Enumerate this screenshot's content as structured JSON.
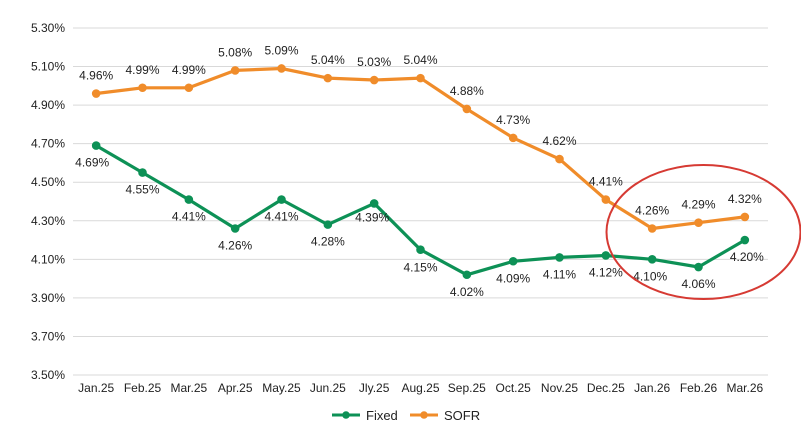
{
  "chart_data": {
    "type": "line",
    "title": "",
    "xlabel": "",
    "ylabel": "",
    "categories": [
      "Jan.25",
      "Feb.25",
      "Mar.25",
      "Apr.25",
      "May.25",
      "Jun.25",
      "Jly.25",
      "Aug.25",
      "Sep.25",
      "Oct.25",
      "Nov.25",
      "Dec.25",
      "Jan.26",
      "Feb.26",
      "Mar.26"
    ],
    "ylim": [
      3.5,
      5.3
    ],
    "yticks": [
      3.5,
      3.7,
      3.9,
      4.1,
      4.3,
      4.5,
      4.7,
      4.9,
      5.1,
      5.3
    ],
    "ytick_labels": [
      "3.50%",
      "3.70%",
      "3.90%",
      "4.10%",
      "4.30%",
      "4.50%",
      "4.70%",
      "4.90%",
      "5.10%",
      "5.30%"
    ],
    "grid": true,
    "legend_position": "bottom-center",
    "series": [
      {
        "name": "Fixed",
        "color": "#0d9156",
        "values": [
          4.69,
          4.55,
          4.41,
          4.26,
          4.41,
          4.28,
          4.39,
          4.15,
          4.02,
          4.09,
          4.11,
          4.12,
          4.1,
          4.06,
          4.2
        ],
        "labels": [
          "4.69%",
          "4.55%",
          "4.41%",
          "4.26%",
          "4.41%",
          "4.28%",
          "4.39%",
          "4.15%",
          "4.02%",
          "4.09%",
          "4.11%",
          "4.12%",
          "4.10%",
          "4.06%",
          "4.20%"
        ]
      },
      {
        "name": "SOFR",
        "color": "#f08c2a",
        "values": [
          4.96,
          4.99,
          4.99,
          5.08,
          5.09,
          5.04,
          5.03,
          5.04,
          4.88,
          4.73,
          4.62,
          4.41,
          4.26,
          4.29,
          4.32
        ],
        "labels": [
          "4.96%",
          "4.99%",
          "4.99%",
          "5.08%",
          "5.09%",
          "5.04%",
          "5.03%",
          "5.04%",
          "4.88%",
          "4.73%",
          "4.62%",
          "4.41%",
          "4.26%",
          "4.29%",
          "4.32%"
        ]
      }
    ],
    "annotation": {
      "type": "ellipse",
      "color": "#d63a33",
      "around": [
        "Jan.26",
        "Mar.26"
      ]
    },
    "grid_color": "#d9d9d9",
    "text_color": "#222222"
  }
}
